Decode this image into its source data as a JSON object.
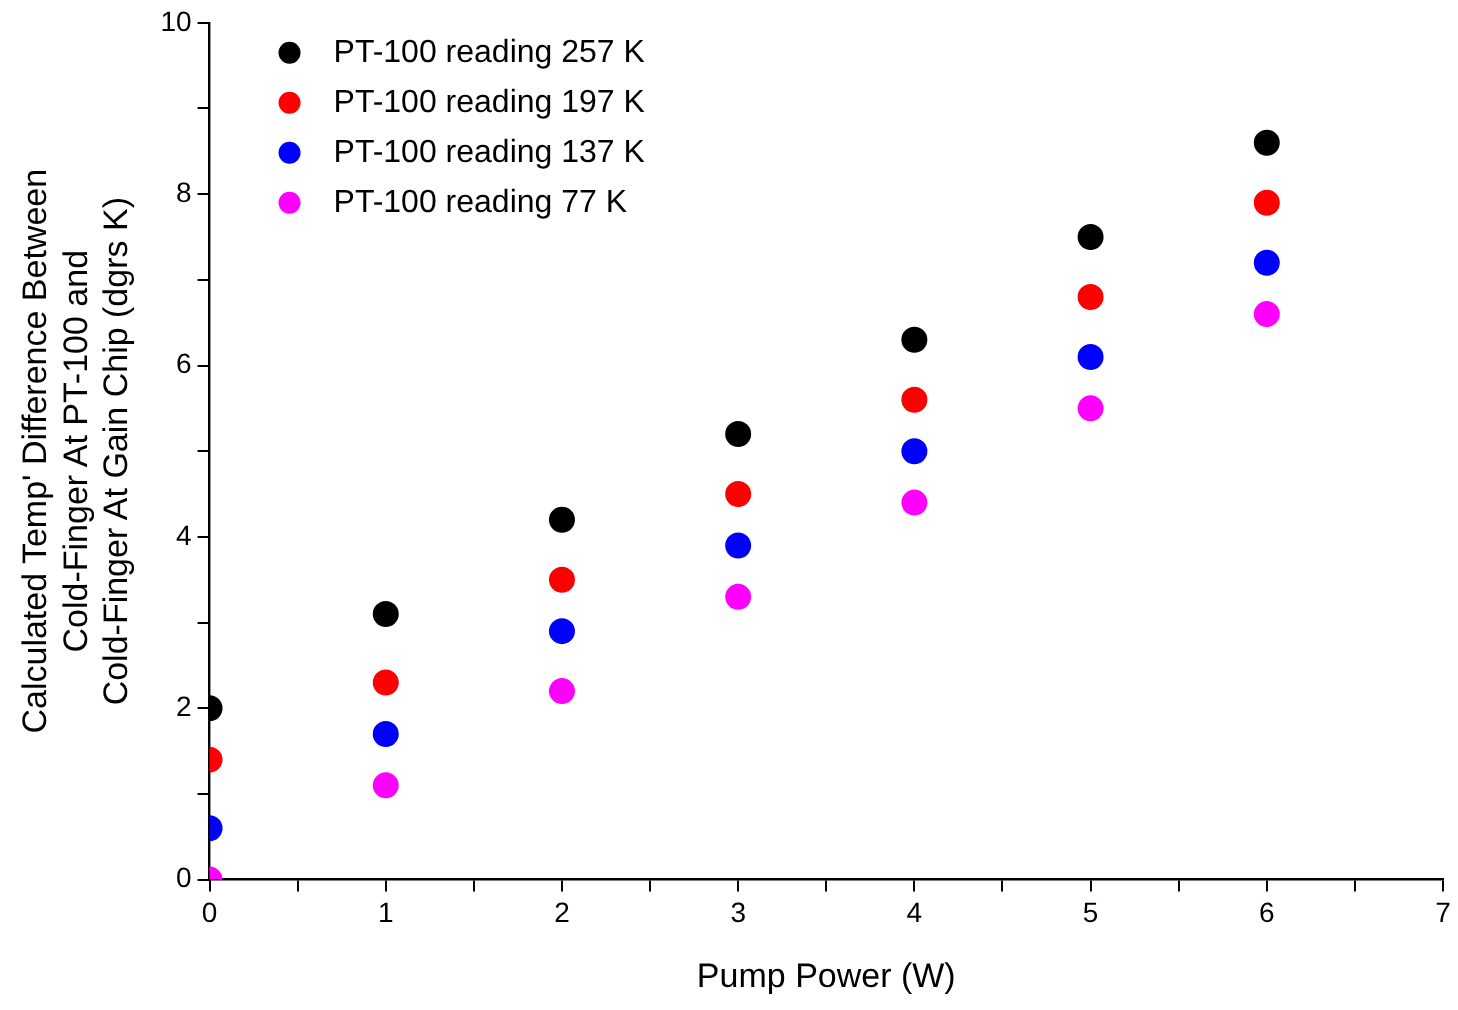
{
  "chart_data": {
    "type": "scatter",
    "xlabel": "Pump Power (W)",
    "ylabel": "Calculated Temp' Difference Between\nCold-Finger At PT-100 and\nCold-Finger At Gain Chip (dgrs K)",
    "x": [
      0,
      1,
      2,
      3,
      4,
      5,
      6
    ],
    "series": [
      {
        "name": "PT-100 reading 257 K",
        "color": "#000000",
        "values": [
          2.0,
          3.1,
          4.2,
          5.2,
          6.3,
          7.5,
          8.6
        ]
      },
      {
        "name": "PT-100 reading 197 K",
        "color": "#ff0000",
        "values": [
          1.4,
          2.3,
          3.5,
          4.5,
          5.6,
          6.8,
          7.9
        ]
      },
      {
        "name": "PT-100 reading 137 K",
        "color": "#0000ff",
        "values": [
          0.6,
          1.7,
          2.9,
          3.9,
          5.0,
          6.1,
          7.2
        ]
      },
      {
        "name": "PT-100 reading 77 K",
        "color": "#ff00ff",
        "values": [
          0.0,
          1.1,
          2.2,
          3.3,
          4.4,
          5.5,
          6.6
        ]
      }
    ],
    "xlim": [
      0,
      7
    ],
    "xticks": [
      0,
      {
        "value": 0.5,
        "label": null
      },
      1,
      {
        "value": 1.5,
        "label": null
      },
      2,
      {
        "value": 2.5,
        "label": null
      },
      3,
      {
        "value": 3.5,
        "label": null
      },
      4,
      {
        "value": 4.5,
        "label": null
      },
      5,
      {
        "value": 5.5,
        "label": null
      },
      6,
      {
        "value": 6.5,
        "label": null
      },
      7
    ],
    "ylim": [
      0,
      10
    ],
    "yticks": [
      0,
      {
        "value": 1,
        "label": null
      },
      2,
      {
        "value": 3,
        "label": null
      },
      4,
      {
        "value": 5,
        "label": null
      },
      6,
      {
        "value": 7,
        "label": null
      },
      8,
      {
        "value": 9,
        "label": null
      },
      10
    ],
    "grid": false,
    "legend": "top left",
    "marker": "circle"
  }
}
